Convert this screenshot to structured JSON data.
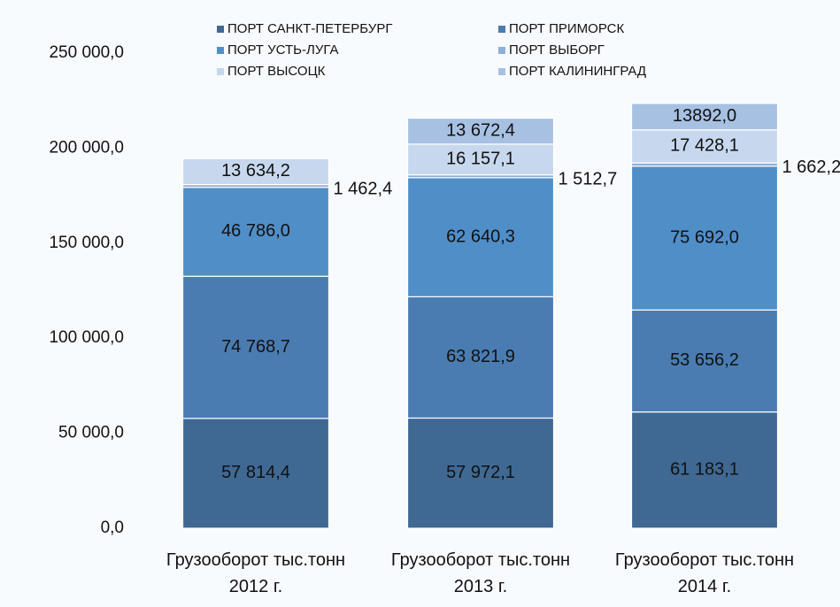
{
  "chart_data": {
    "type": "stacked_bar",
    "categories": [
      "Грузооборот тыс.тонн\n2012 г.",
      "Грузооборот тыс.тонн\n2013 г.",
      "Грузооборот тыс.тонн\n2014 г."
    ],
    "series": [
      {
        "name": "ПОРТ САНКТ-ПЕТЕРБУРГ",
        "color": "#3f6993",
        "values": [
          57814.4,
          57972.1,
          61183.1
        ],
        "value_labels": [
          "57 814,4",
          "57 972,1",
          "61 183,1"
        ]
      },
      {
        "name": "ПОРТ ПРИМОРСК",
        "color": "#4a7cb1",
        "values": [
          74768.7,
          63821.9,
          53656.2
        ],
        "value_labels": [
          "74 768,7",
          "63 821,9",
          "53 656,2"
        ]
      },
      {
        "name": "ПОРТ УСТЬ-ЛУГА",
        "color": "#508ec8",
        "values": [
          46786.0,
          62640.3,
          75692.0
        ],
        "value_labels": [
          "46 786,0",
          "62 640,3",
          "75 692,0"
        ]
      },
      {
        "name": "ПОРТ ВЫБОРГ",
        "color": "#8eafd8",
        "values": [
          1462.4,
          1512.7,
          1662.2
        ],
        "value_labels": [
          "1 462,4",
          "1 512,7",
          "1 662,2"
        ]
      },
      {
        "name": "ПОРТ ВЫСОЦК",
        "color": "#c7d8ee",
        "values": [
          13634.2,
          16157.1,
          17428.1
        ],
        "value_labels": [
          "13 634,2",
          "16 157,1",
          "17 428,1"
        ]
      },
      {
        "name": "ПОРТ КАЛИНИНГРАД",
        "color": "#a7c1e3",
        "values": [
          null,
          13672.4,
          13892.0
        ],
        "value_labels": [
          null,
          "13 672,4",
          "13892,0"
        ]
      }
    ],
    "ylim": [
      0,
      250000
    ],
    "yticks": [
      {
        "value": 0,
        "label": "0,0"
      },
      {
        "value": 50000,
        "label": "50 000,0"
      },
      {
        "value": 100000,
        "label": "100 000,0"
      },
      {
        "value": 150000,
        "label": "150 000,0"
      },
      {
        "value": 200000,
        "label": "200 000,0"
      },
      {
        "value": 250000,
        "label": "250 000,0"
      }
    ],
    "grid": false
  }
}
